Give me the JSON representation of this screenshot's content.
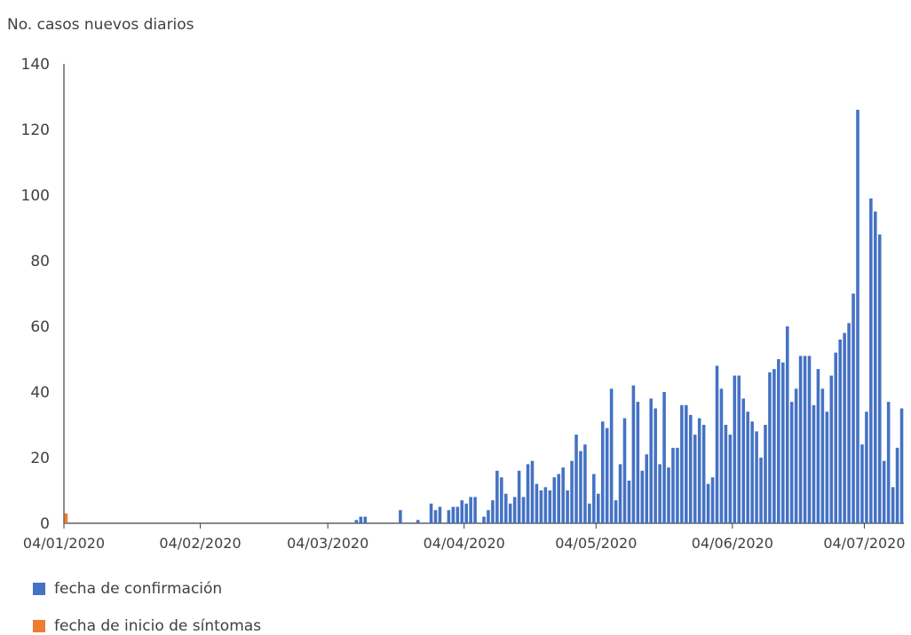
{
  "chart_data": {
    "type": "bar",
    "title": "",
    "ylabel": "No. casos nuevos diarios",
    "xlabel": "",
    "ylim": [
      0,
      140
    ],
    "yticks": [
      0,
      20,
      40,
      60,
      80,
      100,
      120,
      140
    ],
    "x_start": "04/01/2020",
    "x_ticks": [
      "04/01/2020",
      "04/02/2020",
      "04/03/2020",
      "04/04/2020",
      "04/05/2020",
      "04/06/2020",
      "04/07/2020"
    ],
    "grid": false,
    "legend_position": "bottom-left",
    "series": [
      {
        "name": "fecha de confirmación",
        "color": "#4472C4",
        "values": [
          0,
          0,
          0,
          0,
          0,
          0,
          0,
          0,
          0,
          0,
          0,
          0,
          0,
          0,
          0,
          0,
          0,
          0,
          0,
          0,
          0,
          0,
          0,
          0,
          0,
          0,
          0,
          0,
          0,
          0,
          0,
          0,
          0,
          0,
          0,
          0,
          0,
          0,
          0,
          0,
          0,
          0,
          0,
          0,
          0,
          0,
          0,
          0,
          0,
          0,
          0,
          0,
          0,
          0,
          0,
          0,
          0,
          0,
          0,
          0,
          0,
          0,
          0,
          0,
          0,
          0,
          1,
          2,
          2,
          0,
          0,
          0,
          0,
          0,
          0,
          0,
          4,
          0,
          0,
          0,
          1,
          0,
          0,
          6,
          4,
          5,
          0,
          4,
          5,
          5,
          7,
          6,
          8,
          8,
          0,
          2,
          4,
          7,
          16,
          14,
          9,
          6,
          8,
          16,
          8,
          18,
          19,
          12,
          10,
          11,
          10,
          14,
          15,
          17,
          10,
          19,
          27,
          22,
          24,
          6,
          15,
          9,
          31,
          29,
          41,
          7,
          18,
          32,
          13,
          42,
          37,
          16,
          21,
          38,
          35,
          18,
          40,
          17,
          23,
          23,
          36,
          36,
          33,
          27,
          32,
          30,
          12,
          14,
          48,
          41,
          30,
          27,
          45,
          45,
          38,
          34,
          31,
          28,
          20,
          30,
          46,
          47,
          50,
          49,
          60,
          37,
          41,
          51,
          51,
          51,
          36,
          47,
          41,
          34,
          45,
          52,
          56,
          58,
          61,
          70,
          126,
          24,
          34,
          99,
          95,
          88,
          19,
          37,
          11,
          23,
          35
        ]
      },
      {
        "name": "fecha de inicio de síntomas",
        "color": "#ED7D31",
        "values": [
          3,
          0,
          0,
          0,
          0,
          0,
          0,
          0,
          0,
          0,
          0,
          0,
          0,
          0,
          0,
          0,
          0,
          0,
          0,
          0,
          0,
          0,
          0,
          0,
          0,
          0,
          0,
          0,
          0,
          0,
          0,
          0,
          0,
          0,
          0,
          0,
          0,
          0,
          0,
          0,
          0,
          0,
          0,
          0,
          0,
          0,
          0,
          0,
          0,
          0,
          0,
          0,
          0,
          0,
          0,
          0,
          0,
          0,
          0,
          0,
          0,
          0,
          0,
          0,
          0,
          0,
          0,
          0,
          0,
          0,
          0,
          0,
          0,
          0,
          0,
          0,
          0,
          0,
          0,
          0,
          0,
          0,
          0,
          0,
          0,
          0,
          0,
          0,
          0,
          0,
          0,
          0,
          0,
          0,
          0,
          0,
          0,
          0,
          0,
          0,
          0,
          0,
          0,
          0,
          0,
          0,
          0,
          0,
          0,
          0,
          0,
          0,
          0,
          0,
          0,
          0,
          0,
          0,
          0,
          0,
          0,
          0,
          0,
          0,
          0,
          0,
          0,
          0,
          0,
          0,
          0,
          0,
          0,
          0,
          0,
          0,
          0,
          0,
          0,
          0,
          0,
          0,
          0,
          0,
          0,
          0,
          0,
          0,
          0,
          0,
          0,
          0,
          0,
          0,
          0,
          0
        ]
      }
    ],
    "overrides": {}
  }
}
